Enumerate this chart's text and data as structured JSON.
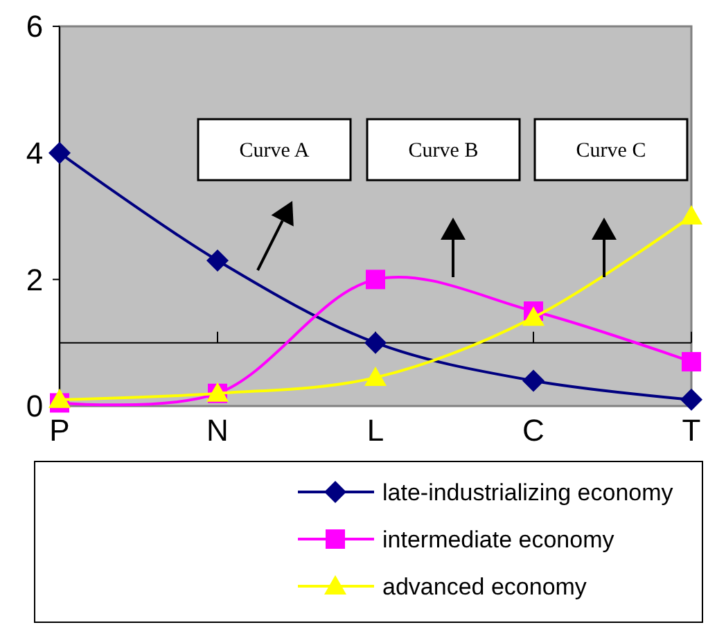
{
  "chart_data": {
    "type": "line",
    "categories": [
      "P",
      "N",
      "L",
      "C",
      "T"
    ],
    "ylim": [
      0,
      6
    ],
    "yticks": [
      0,
      2,
      4,
      6
    ],
    "grid": false,
    "legend": "bottom",
    "annotations": [
      "Curve A",
      "Curve B",
      "Curve C"
    ],
    "ref_lines": [
      {
        "axis": "y",
        "value": 1,
        "color": "#000000"
      }
    ],
    "series": [
      {
        "name": "late-industrializing economy",
        "color": "#000080",
        "marker": "diamond",
        "values": [
          4,
          2.3,
          1,
          0.4,
          0.1
        ]
      },
      {
        "name": "intermediate economy",
        "color": "#ff00ff",
        "marker": "square",
        "values": [
          0.05,
          0.2,
          2,
          1.5,
          0.7
        ]
      },
      {
        "name": "advanced economy",
        "color": "#ffff00",
        "marker": "triangle",
        "values": [
          0.1,
          0.2,
          0.45,
          1.4,
          3
        ]
      }
    ]
  }
}
